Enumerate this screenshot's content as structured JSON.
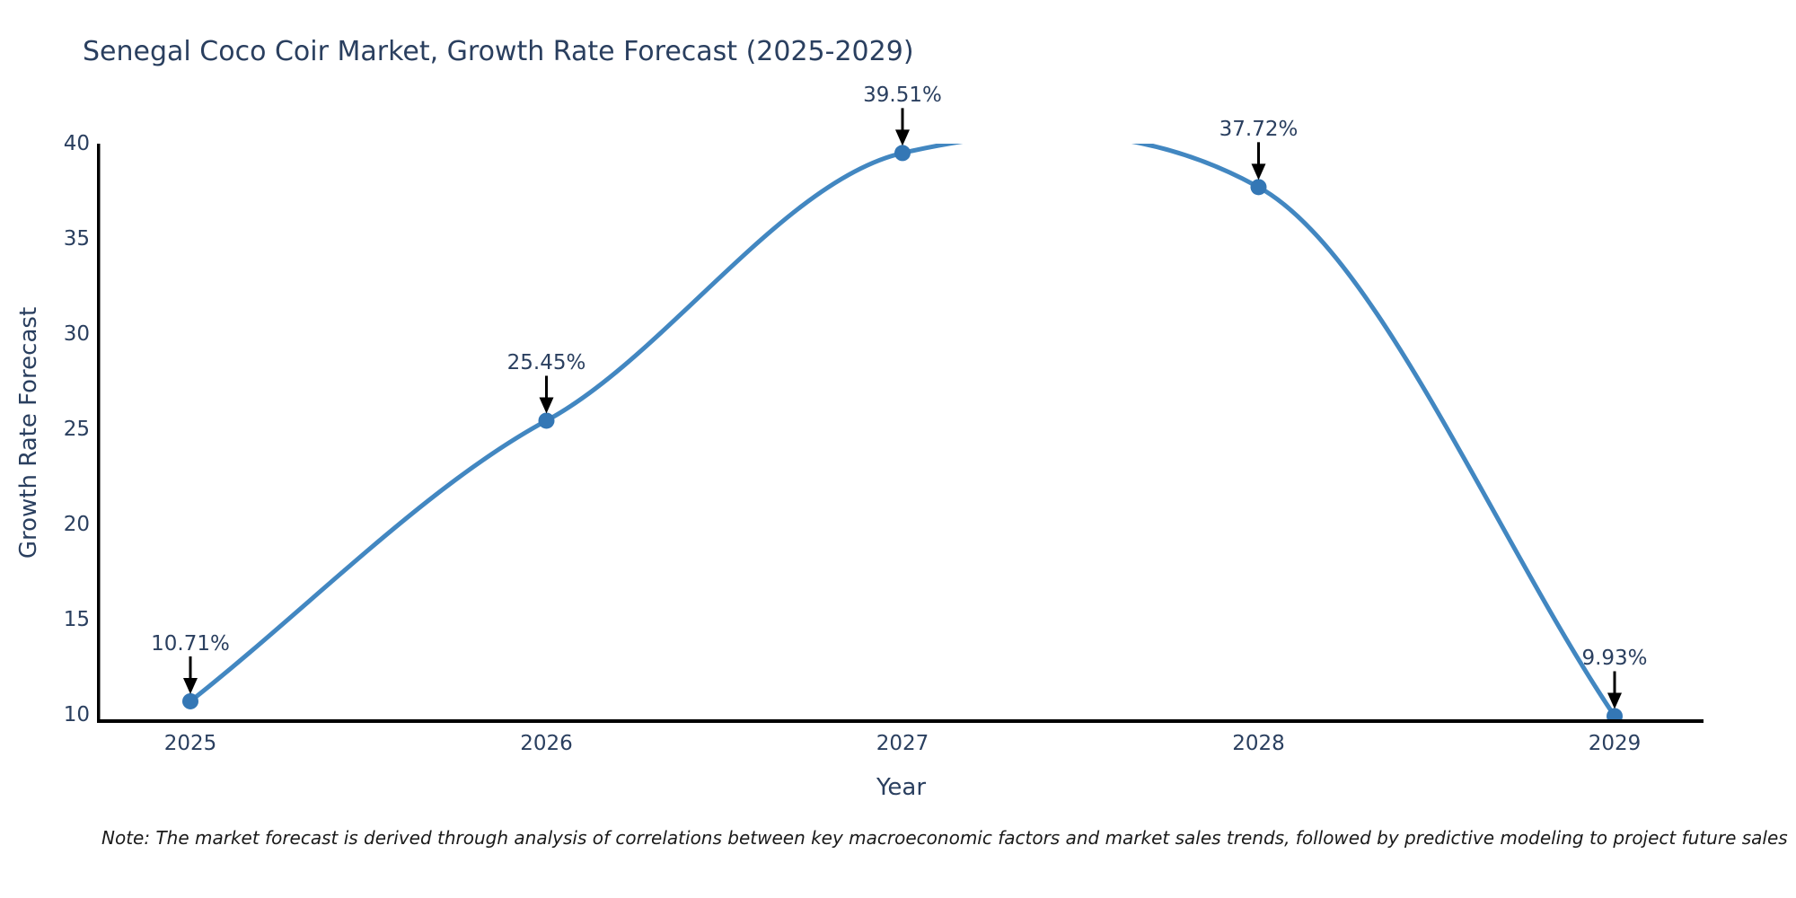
{
  "chart": {
    "title": "Senegal Coco Coir Market, Growth Rate Forecast (2025-2029)",
    "note": "Note: The market forecast is derived through analysis of correlations between key macroeconomic factors and market sales trends, followed by predictive modeling to project future sales"
  },
  "chart_data": {
    "type": "line",
    "title": "Senegal Coco Coir Market, Growth Rate Forecast (2025-2029)",
    "xlabel": "Year",
    "ylabel": "Growth Rate Forecast",
    "categories": [
      "2025",
      "2026",
      "2027",
      "2028",
      "2029"
    ],
    "x": [
      2025,
      2026,
      2027,
      2028,
      2029
    ],
    "values": [
      10.71,
      25.45,
      39.51,
      37.72,
      9.93
    ],
    "point_labels": [
      "10.71%",
      "25.45%",
      "39.51%",
      "37.72%",
      "9.93%"
    ],
    "yticks": [
      40,
      35,
      30,
      25,
      20,
      15,
      10
    ],
    "ytick_labels": [
      "40",
      "35",
      "30",
      "25",
      "20",
      "15",
      "10"
    ],
    "ylim": [
      9.67,
      40
    ],
    "line_shape": "spline",
    "grid": false,
    "legend": false,
    "annotation_style": "arrow-down-to-point",
    "colors": {
      "line": "#4287c1",
      "marker": "#3477b5",
      "axis": "#000000",
      "arrow": "#000000",
      "text": "#2a3f5f",
      "note_text": "#1a1a1a"
    }
  }
}
